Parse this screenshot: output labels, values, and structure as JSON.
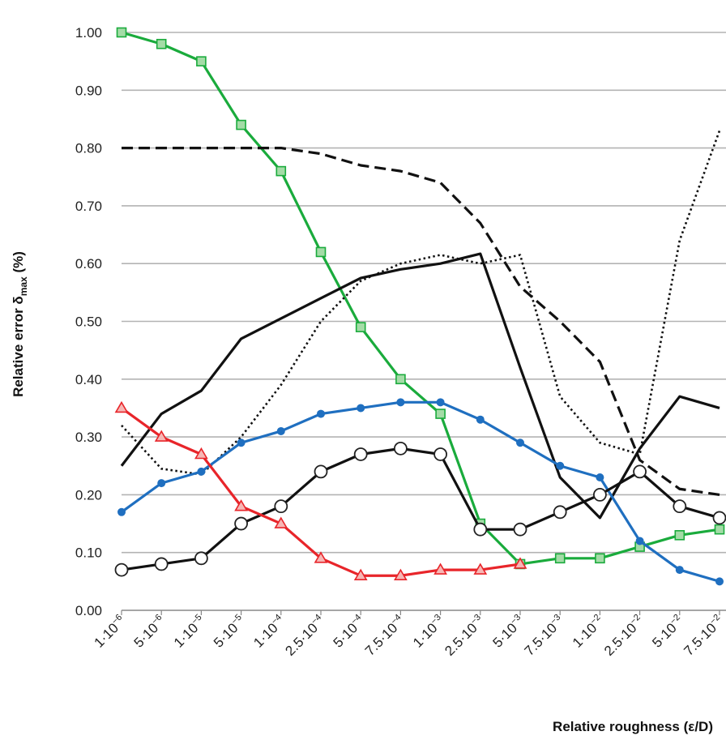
{
  "chart_data": {
    "type": "line",
    "xlabel": "Relative roughness (ε/D)",
    "ylabel": {
      "main": "Relative error δ",
      "sub": "max",
      "unit": " (%)"
    },
    "ylim": [
      0,
      1
    ],
    "yticks": [
      "0.00",
      "0.10",
      "0.20",
      "0.30",
      "0.40",
      "0.50",
      "0.60",
      "0.70",
      "0.80",
      "0.90",
      "1.00"
    ],
    "grid": "horizontal",
    "categories": [
      {
        "base": "1·10",
        "exp": "−6"
      },
      {
        "base": "5·10",
        "exp": "−6"
      },
      {
        "base": "1·10",
        "exp": "−5"
      },
      {
        "base": "5·10",
        "exp": "−5"
      },
      {
        "base": "1·10",
        "exp": "−4"
      },
      {
        "base": "2.5·10",
        "exp": "−4"
      },
      {
        "base": "5·10",
        "exp": "−4"
      },
      {
        "base": "7.5·10",
        "exp": "−4"
      },
      {
        "base": "1·10",
        "exp": "−3"
      },
      {
        "base": "2.5·10",
        "exp": "−3"
      },
      {
        "base": "5·10",
        "exp": "−3"
      },
      {
        "base": "7.5·10",
        "exp": "−3"
      },
      {
        "base": "1·10",
        "exp": "−2"
      },
      {
        "base": "2.5·10",
        "exp": "−2"
      },
      {
        "base": "5·10",
        "exp": "−2"
      },
      {
        "base": "7.5·10",
        "exp": "−2"
      }
    ],
    "series": [
      {
        "color": "#1aab3c",
        "style": "solid",
        "marker": "square",
        "values": [
          1.0,
          0.98,
          0.95,
          0.84,
          0.76,
          0.62,
          0.49,
          0.4,
          0.34,
          0.15,
          0.08,
          0.09,
          0.09,
          0.11,
          0.13,
          0.14
        ]
      },
      {
        "color": "#111111",
        "style": "dashed",
        "marker": "none",
        "values": [
          0.8,
          0.8,
          0.8,
          0.8,
          0.8,
          0.79,
          0.77,
          0.76,
          0.74,
          0.67,
          0.56,
          0.5,
          0.43,
          0.26,
          0.21,
          0.2
        ]
      },
      {
        "color": "#111111",
        "style": "dotted",
        "marker": "none",
        "values": [
          0.32,
          0.245,
          0.235,
          0.3,
          0.39,
          0.5,
          0.57,
          0.6,
          0.615,
          0.6,
          0.615,
          0.37,
          0.29,
          0.27,
          0.64,
          0.83
        ]
      },
      {
        "color": "#111111",
        "style": "solid",
        "marker": "none",
        "values": [
          0.25,
          0.34,
          0.38,
          0.47,
          0.505,
          0.54,
          0.575,
          0.59,
          0.6,
          0.617,
          0.42,
          0.23,
          0.16,
          0.28,
          0.37,
          0.35
        ]
      },
      {
        "color": "#1f6fc0",
        "style": "solid",
        "marker": "dot",
        "values": [
          0.17,
          0.22,
          0.24,
          0.29,
          0.31,
          0.34,
          0.35,
          0.36,
          0.36,
          0.33,
          0.29,
          0.25,
          0.23,
          0.12,
          0.07,
          0.05
        ]
      },
      {
        "color": "#111111",
        "style": "solid",
        "marker": "circle",
        "values": [
          0.07,
          0.08,
          0.09,
          0.15,
          0.18,
          0.24,
          0.27,
          0.28,
          0.27,
          0.14,
          0.14,
          0.17,
          0.2,
          0.24,
          0.18,
          0.16
        ]
      },
      {
        "color": "#e8252a",
        "style": "solid",
        "marker": "triangle",
        "values": [
          0.35,
          0.3,
          0.27,
          0.18,
          0.15,
          0.09,
          0.06,
          0.06,
          0.07,
          0.07,
          0.08,
          null,
          null,
          null,
          null,
          null
        ]
      }
    ]
  }
}
